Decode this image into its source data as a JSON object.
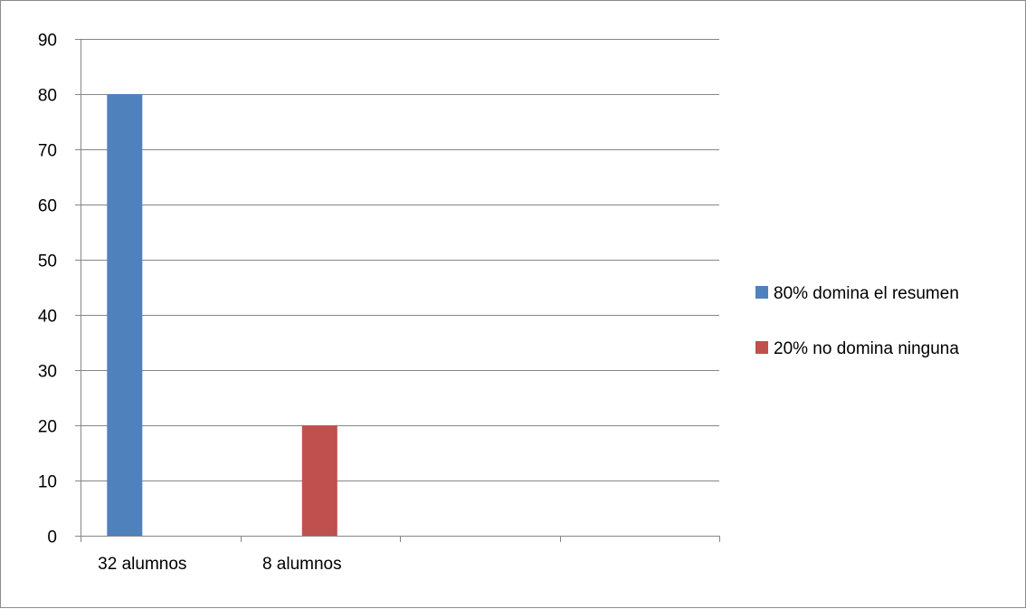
{
  "chart_data": {
    "type": "bar",
    "categories": [
      "32 alumnos",
      "8 alumnos",
      "",
      ""
    ],
    "series": [
      {
        "name": "80% domina el resumen",
        "color": "#4f81bd",
        "values": [
          80,
          null,
          null,
          null
        ]
      },
      {
        "name": "20% no domina ninguna",
        "color": "#c0504d",
        "values": [
          null,
          20,
          null,
          null
        ]
      }
    ],
    "ylim": [
      0,
      90
    ],
    "yticks": [
      0,
      10,
      20,
      30,
      40,
      50,
      60,
      70,
      80,
      90
    ],
    "grid": true,
    "legend": "right",
    "title": "",
    "xlabel": "",
    "ylabel": ""
  }
}
